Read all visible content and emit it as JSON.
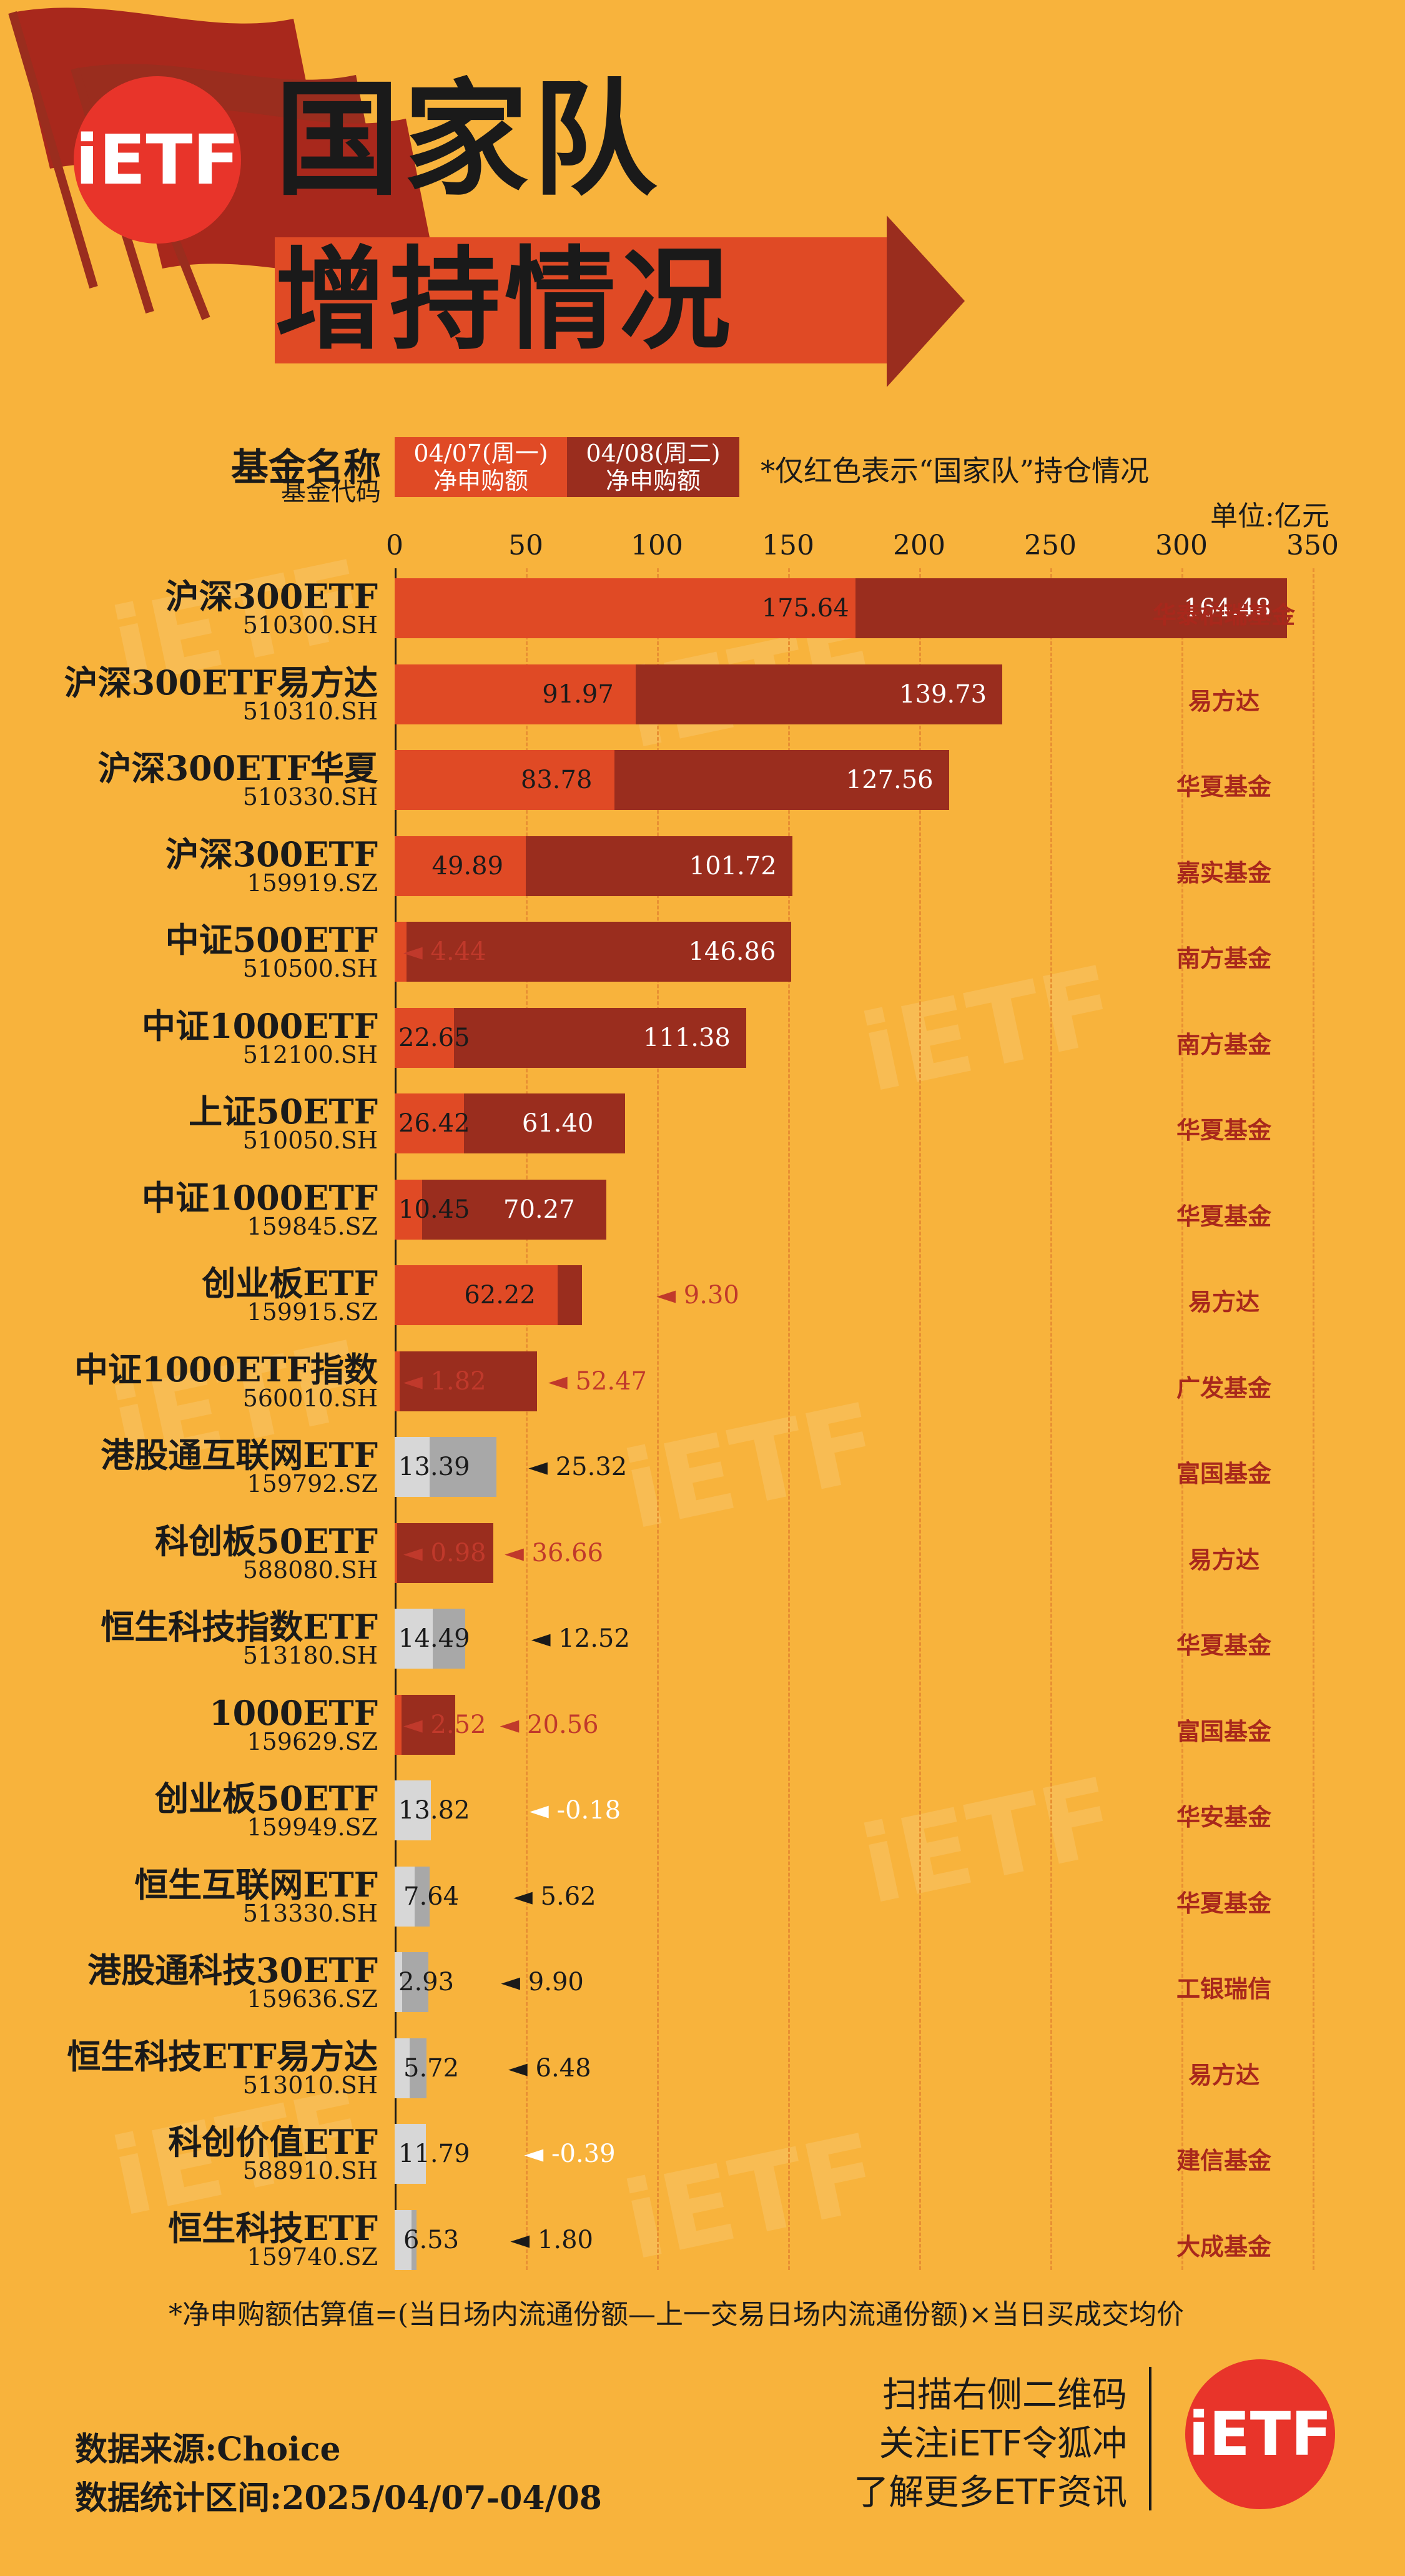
{
  "brand": {
    "logo_text": "iETF"
  },
  "title": {
    "line1": "国家队",
    "line2": "增持情况"
  },
  "legend": {
    "name_label": "基金名称",
    "code_label": "基金代码",
    "day1": "04/07(周一)\n净申购额",
    "day2": "04/08(周二)\n净申购额",
    "note": "*仅红色表示“国家队”持仓情况",
    "unit": "单位:亿元"
  },
  "colors": {
    "day1_red": "#E04A25",
    "day2_red": "#9A2D1E",
    "day1_gray": "#D7D7D7",
    "day2_gray": "#A8A8A8",
    "neg_label": "#C0392B"
  },
  "chart_data": {
    "type": "bar",
    "orientation": "horizontal",
    "stacked": true,
    "xlim": [
      0,
      350
    ],
    "ticks": [
      0,
      50,
      100,
      150,
      200,
      250,
      300,
      350
    ],
    "categories": [
      {
        "name": "沪深300ETF",
        "code": "510300.SH",
        "d1": 175.64,
        "d2": 164.48,
        "color": "red",
        "company": "华泰柏瑞基金"
      },
      {
        "name": "沪深300ETF易方达",
        "code": "510310.SH",
        "d1": 91.97,
        "d2": 139.73,
        "color": "red",
        "company": "易方达"
      },
      {
        "name": "沪深300ETF华夏",
        "code": "510330.SH",
        "d1": 83.78,
        "d2": 127.56,
        "color": "red",
        "company": "华夏基金"
      },
      {
        "name": "沪深300ETF",
        "code": "159919.SZ",
        "d1": 49.89,
        "d2": 101.72,
        "color": "red",
        "company": "嘉实基金"
      },
      {
        "name": "中证500ETF",
        "code": "510500.SH",
        "d1": 4.44,
        "d2": 146.86,
        "color": "red",
        "company": "南方基金",
        "d1_outside": true
      },
      {
        "name": "中证1000ETF",
        "code": "512100.SH",
        "d1": 22.65,
        "d2": 111.38,
        "color": "red",
        "company": "南方基金"
      },
      {
        "name": "上证50ETF",
        "code": "510050.SH",
        "d1": 26.42,
        "d2": 61.4,
        "color": "red",
        "company": "华夏基金"
      },
      {
        "name": "中证1000ETF",
        "code": "159845.SZ",
        "d1": 10.45,
        "d2": 70.27,
        "color": "red",
        "company": "华夏基金"
      },
      {
        "name": "创业板ETF",
        "code": "159915.SZ",
        "d1": 62.22,
        "d2": 9.3,
        "color": "red",
        "company": "易方达",
        "d2_outside": true
      },
      {
        "name": "中证1000ETF指数",
        "code": "560010.SH",
        "d1": 1.82,
        "d2": 52.47,
        "color": "red",
        "company": "广发基金",
        "d1_outside": true,
        "d2_outside": true
      },
      {
        "name": "港股通互联网ETF",
        "code": "159792.SZ",
        "d1": 13.39,
        "d2": 25.32,
        "color": "gray",
        "company": "富国基金",
        "d2_outside": true
      },
      {
        "name": "科创板50ETF",
        "code": "588080.SH",
        "d1": 0.98,
        "d2": 36.66,
        "color": "red",
        "company": "易方达",
        "d1_outside": true,
        "d2_outside": true
      },
      {
        "name": "恒生科技指数ETF",
        "code": "513180.SH",
        "d1": 14.49,
        "d2": 12.52,
        "color": "gray",
        "company": "华夏基金",
        "d2_outside": true
      },
      {
        "name": "1000ETF",
        "code": "159629.SZ",
        "d1": 2.52,
        "d2": 20.56,
        "color": "red",
        "company": "富国基金",
        "d1_outside": true,
        "d2_outside": true
      },
      {
        "name": "创业板50ETF",
        "code": "159949.SZ",
        "d1": 13.82,
        "d2": -0.18,
        "color": "gray",
        "company": "华安基金",
        "d2_outside": true
      },
      {
        "name": "恒生互联网ETF",
        "code": "513330.SH",
        "d1": 7.64,
        "d2": 5.62,
        "color": "gray",
        "company": "华夏基金",
        "d1_outside": true,
        "d2_outside": true
      },
      {
        "name": "港股通科技30ETF",
        "code": "159636.SZ",
        "d1": 2.93,
        "d2": 9.9,
        "color": "gray",
        "company": "工银瑞信",
        "d2_outside": true
      },
      {
        "name": "恒生科技ETF易方达",
        "code": "513010.SH",
        "d1": 5.72,
        "d2": 6.48,
        "color": "gray",
        "company": "易方达",
        "d1_outside": true,
        "d2_outside": true
      },
      {
        "name": "科创价值ETF",
        "code": "588910.SH",
        "d1": 11.79,
        "d2": -0.39,
        "color": "gray",
        "company": "建信基金",
        "d2_outside": true
      },
      {
        "name": "恒生科技ETF",
        "code": "159740.SZ",
        "d1": 6.53,
        "d2": 1.8,
        "color": "gray",
        "company": "大成基金",
        "d1_outside": true,
        "d2_outside": true
      }
    ]
  },
  "footer": {
    "formula": "*净申购额估算值=(当日场内流通份额—上一交易日场内流通份额)×当日买成交均价",
    "source": "数据来源:Choice",
    "period": "数据统计区间:2025/04/07-04/08",
    "qr1": "扫描右侧二维码",
    "qr2": "关注iETF令狐冲",
    "qr3": "了解更多ETF资讯"
  }
}
